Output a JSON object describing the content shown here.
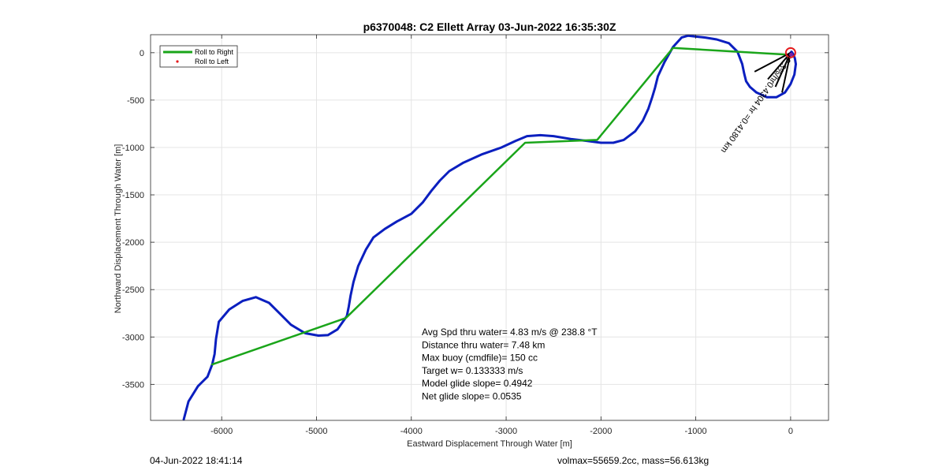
{
  "chart_data": {
    "type": "line",
    "title": "p6370048: C2 Ellett Array 03-Jun-2022 16:35:30Z",
    "xlabel": "Eastward Displacement Through Water [m]",
    "ylabel": "Northward Displacement Through Water [m]",
    "xlim": [
      -6750,
      400
    ],
    "ylim": [
      -3880,
      190
    ],
    "xticks": [
      -6000,
      -5000,
      -4000,
      -3000,
      -2000,
      -1000,
      0
    ],
    "yticks": [
      0,
      -500,
      -1000,
      -1500,
      -2000,
      -2500,
      -3000,
      -3500
    ],
    "grid": true,
    "legend": {
      "placement": "top-left",
      "entries": [
        {
          "label": "Roll to Right",
          "color": "#1aa51a",
          "style": "line"
        },
        {
          "label": "Roll to Left",
          "color": "#e41a1c",
          "style": "dot"
        }
      ]
    },
    "series": [
      {
        "color": "#0b1fbf",
        "x": [
          -6400,
          -6350,
          -6250,
          -6150,
          -6100,
          -6075,
          -6060,
          -6030,
          -5920,
          -5780,
          -5640,
          -5500,
          -5380,
          -5270,
          -5120,
          -4980,
          -4880,
          -4780,
          -4680,
          -4660,
          -4640,
          -4610,
          -4560,
          -4480,
          -4400,
          -4280,
          -4150,
          -4000,
          -3880,
          -3790,
          -3700,
          -3600,
          -3450,
          -3250,
          -3050,
          -2900,
          -2780,
          -2640,
          -2500,
          -2320,
          -2150,
          -2000,
          -1870,
          -1760,
          -1640,
          -1560,
          -1500,
          -1460,
          -1430,
          -1400,
          -1330,
          -1240,
          -1150,
          -1080,
          -1000,
          -900,
          -780,
          -650,
          -560,
          -510,
          -490,
          -470,
          -430,
          -360,
          -250,
          -150,
          -60,
          0,
          40,
          55,
          45,
          30,
          10,
          0
        ],
        "y": [
          -3870,
          -3680,
          -3520,
          -3420,
          -3290,
          -3180,
          -3020,
          -2840,
          -2710,
          -2620,
          -2580,
          -2640,
          -2760,
          -2870,
          -2960,
          -2985,
          -2980,
          -2920,
          -2780,
          -2680,
          -2560,
          -2420,
          -2250,
          -2080,
          -1950,
          -1860,
          -1780,
          -1700,
          -1580,
          -1460,
          -1350,
          -1250,
          -1160,
          -1070,
          -1000,
          -930,
          -880,
          -870,
          -880,
          -910,
          -930,
          -950,
          -950,
          -920,
          -830,
          -720,
          -590,
          -470,
          -370,
          -250,
          -100,
          60,
          160,
          180,
          170,
          160,
          140,
          100,
          10,
          -120,
          -220,
          -300,
          -360,
          -420,
          -470,
          -470,
          -420,
          -330,
          -230,
          -120,
          -60,
          -20,
          10,
          0
        ]
      },
      {
        "color": "#1aa51a",
        "x": [
          -6100,
          -4690,
          -2800,
          -2040,
          -1240,
          -40
        ],
        "y": [
          -3290,
          -2800,
          -950,
          -920,
          50,
          -20
        ]
      }
    ],
    "points": [
      {
        "x": 0,
        "y": 0,
        "color": "#e41a1c",
        "style": "circle"
      },
      {
        "x": 5,
        "y": -20,
        "color": "#7b1fa2",
        "style": "dot"
      }
    ],
    "current_lines": [
      {
        "x": [
          0,
          -380
        ],
        "y": [
          0,
          -200
        ]
      },
      {
        "x": [
          0,
          -240
        ],
        "y": [
          0,
          -280
        ]
      },
      {
        "x": [
          0,
          -160
        ],
        "y": [
          0,
          -360
        ]
      },
      {
        "x": [
          0,
          -90
        ],
        "y": [
          0,
          -420
        ]
      }
    ],
    "annotations": {
      "rotated_label": "-2.3%/hr0.4304 hr =0.4180 km",
      "stats_lines": [
        "Avg Spd thru water=  4.83 m/s @ 238.8 °T",
        "Distance thru water=  7.48 km",
        "Max buoy (cmdfile)= 150 cc",
        "Target w= 0.133333 m/s",
        "Model glide slope= 0.4942",
        "Net glide slope= 0.0535"
      ]
    }
  },
  "footer": {
    "left": "04-Jun-2022 18:41:14",
    "right": "volmax=55659.2cc, mass=56.613kg"
  }
}
